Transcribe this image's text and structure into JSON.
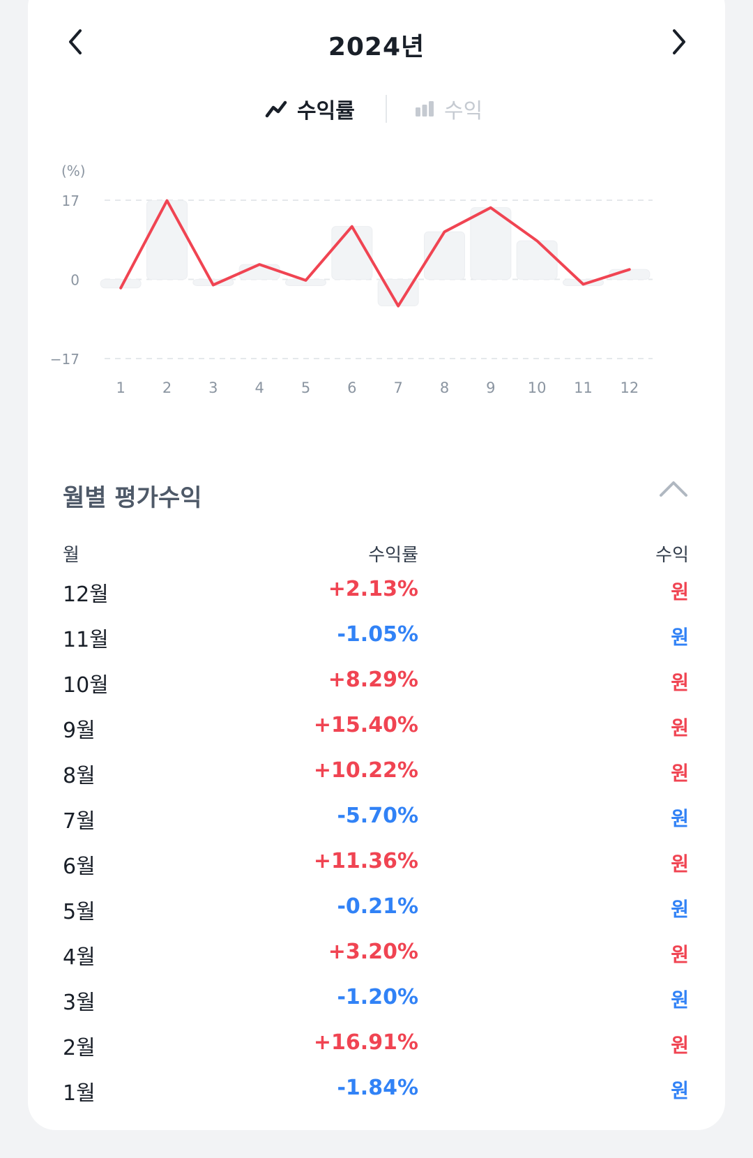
{
  "header": {
    "title": "2024년",
    "prev_icon": "chevron-left-icon",
    "next_icon": "chevron-right-icon"
  },
  "toggle": {
    "rate_label": "수익률",
    "profit_label": "수익",
    "rate_icon": "trend-line-icon",
    "profit_icon": "bar-chart-icon"
  },
  "colors": {
    "positive": "#f04452",
    "negative": "#3182f6",
    "bar": "#f2f4f6",
    "line": "#f04452"
  },
  "chart_data": {
    "type": "line",
    "ylabel": "(%)",
    "ylim": [
      -17,
      17
    ],
    "yticks": [
      "17",
      "0",
      "−17"
    ],
    "categories": [
      "1",
      "2",
      "3",
      "4",
      "5",
      "6",
      "7",
      "8",
      "9",
      "10",
      "11",
      "12"
    ],
    "series": [
      {
        "values": [
          -1.84,
          16.91,
          -1.2,
          3.2,
          -0.21,
          11.36,
          -5.7,
          10.22,
          15.4,
          8.29,
          -1.05,
          2.13
        ]
      }
    ],
    "grid": true
  },
  "section": {
    "title": "월별 평가수익",
    "collapse_icon": "chevron-up-icon"
  },
  "table": {
    "headers": {
      "month": "월",
      "rate": "수익률",
      "profit": "수익"
    },
    "rows": [
      {
        "month": "12월",
        "rate": "+2.13%",
        "profit": "원",
        "sign": "pos"
      },
      {
        "month": "11월",
        "rate": "-1.05%",
        "profit": "원",
        "sign": "neg"
      },
      {
        "month": "10월",
        "rate": "+8.29%",
        "profit": "원",
        "sign": "pos"
      },
      {
        "month": "9월",
        "rate": "+15.40%",
        "profit": "원",
        "sign": "pos"
      },
      {
        "month": "8월",
        "rate": "+10.22%",
        "profit": "원",
        "sign": "pos"
      },
      {
        "month": "7월",
        "rate": "-5.70%",
        "profit": "원",
        "sign": "neg"
      },
      {
        "month": "6월",
        "rate": "+11.36%",
        "profit": "원",
        "sign": "pos"
      },
      {
        "month": "5월",
        "rate": "-0.21%",
        "profit": "원",
        "sign": "neg"
      },
      {
        "month": "4월",
        "rate": "+3.20%",
        "profit": "원",
        "sign": "pos"
      },
      {
        "month": "3월",
        "rate": "-1.20%",
        "profit": "원",
        "sign": "neg"
      },
      {
        "month": "2월",
        "rate": "+16.91%",
        "profit": "원",
        "sign": "pos"
      },
      {
        "month": "1월",
        "rate": "-1.84%",
        "profit": "원",
        "sign": "neg"
      }
    ]
  }
}
